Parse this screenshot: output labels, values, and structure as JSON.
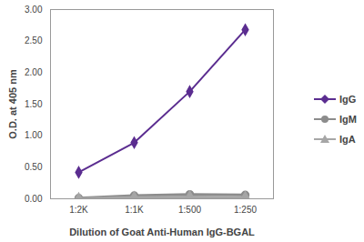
{
  "chart_data": {
    "type": "line",
    "x_label": "Dilution of Goat Anti-Human IgG-BGAL",
    "y_label": "O.D. at 405 nm",
    "categories": [
      "1:2K",
      "1:1K",
      "1:500",
      "1:250"
    ],
    "series": [
      {
        "name": "IgG",
        "color": "#5b2d90",
        "marker": "diamond",
        "values": [
          0.42,
          0.89,
          1.7,
          2.68
        ]
      },
      {
        "name": "IgM",
        "color": "#8c8c8c",
        "marker": "circle",
        "values": [
          0.01,
          0.05,
          0.07,
          0.06
        ]
      },
      {
        "name": "IgA",
        "color": "#a6a6a6",
        "marker": "triangle",
        "values": [
          0.0,
          0.02,
          0.03,
          0.02
        ]
      }
    ],
    "ylim": [
      0,
      3
    ],
    "yticks": [
      {
        "value": 0,
        "label": "0.00"
      },
      {
        "value": 0.5,
        "label": "0.50"
      },
      {
        "value": 1,
        "label": "1.00"
      },
      {
        "value": 1.5,
        "label": "1.50"
      },
      {
        "value": 2,
        "label": "2.00"
      },
      {
        "value": 2.5,
        "label": "2.50"
      },
      {
        "value": 3,
        "label": "3.00"
      }
    ],
    "grid": false,
    "legend": "right"
  }
}
